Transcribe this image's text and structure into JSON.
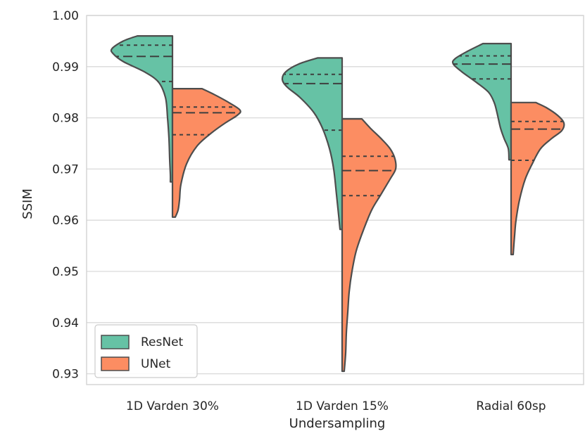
{
  "chart_data": {
    "type": "violin",
    "split": true,
    "xlabel": "Undersampling",
    "ylabel": "SSIM",
    "ylim": [
      0.9285,
      1.0
    ],
    "yticks": [
      1.0,
      0.99,
      0.98,
      0.97,
      0.96,
      0.95,
      0.94,
      0.93
    ],
    "ytick_labels": [
      "1.00",
      "0.99",
      "0.98",
      "0.97",
      "0.96",
      "0.95",
      "0.94",
      "0.93"
    ],
    "grid": true,
    "legend_position": "bottom-left",
    "categories": [
      "1D Varden 30%",
      "1D Varden 15%",
      "Radial 60sp"
    ],
    "series": [
      {
        "name": "ResNet",
        "color": "#66c2a5",
        "side": "left",
        "violins": [
          {
            "profile": [
              [
                0.996,
                50
              ],
              [
                0.995,
                70
              ],
              [
                0.9935,
                86
              ],
              [
                0.9925,
                84
              ],
              [
                0.991,
                70
              ],
              [
                0.989,
                40
              ],
              [
                0.987,
                20
              ],
              [
                0.984,
                10
              ],
              [
                0.98,
                7
              ],
              [
                0.976,
                5
              ],
              [
                0.972,
                4
              ],
              [
                0.969,
                3
              ],
              [
                0.9675,
                3
              ]
            ],
            "quartiles": [
              0.9871,
              0.992,
              0.9942
            ]
          },
          {
            "profile": [
              [
                0.9917,
                35
              ],
              [
                0.9905,
                62
              ],
              [
                0.989,
                80
              ],
              [
                0.9875,
                85
              ],
              [
                0.986,
                78
              ],
              [
                0.984,
                60
              ],
              [
                0.981,
                40
              ],
              [
                0.978,
                28
              ],
              [
                0.974,
                18
              ],
              [
                0.97,
                12
              ],
              [
                0.965,
                8
              ],
              [
                0.961,
                5
              ],
              [
                0.9582,
                3
              ]
            ],
            "quartiles": [
              0.9776,
              0.9867,
              0.9885
            ]
          },
          {
            "profile": [
              [
                0.9945,
                40
              ],
              [
                0.993,
                62
              ],
              [
                0.9915,
                80
              ],
              [
                0.9905,
                82
              ],
              [
                0.989,
                70
              ],
              [
                0.987,
                50
              ],
              [
                0.985,
                32
              ],
              [
                0.983,
                24
              ],
              [
                0.981,
                20
              ],
              [
                0.978,
                15
              ],
              [
                0.976,
                10
              ],
              [
                0.974,
                4
              ],
              [
                0.9718,
                3
              ]
            ],
            "quartiles": [
              0.9876,
              0.9905,
              0.9921
            ]
          }
        ]
      },
      {
        "name": "UNet",
        "color": "#fc8d62",
        "side": "right",
        "violins": [
          {
            "profile": [
              [
                0.9857,
                42
              ],
              [
                0.9845,
                60
              ],
              [
                0.983,
                80
              ],
              [
                0.9815,
                96
              ],
              [
                0.9805,
                92
              ],
              [
                0.979,
                75
              ],
              [
                0.977,
                55
              ],
              [
                0.9745,
                35
              ],
              [
                0.971,
                20
              ],
              [
                0.967,
                12
              ],
              [
                0.964,
                10
              ],
              [
                0.962,
                8
              ],
              [
                0.9606,
                4
              ]
            ],
            "quartiles": [
              0.9767,
              0.981,
              0.9821
            ]
          },
          {
            "profile": [
              [
                0.9798,
                28
              ],
              [
                0.978,
                40
              ],
              [
                0.976,
                55
              ],
              [
                0.974,
                68
              ],
              [
                0.972,
                75
              ],
              [
                0.97,
                76
              ],
              [
                0.968,
                68
              ],
              [
                0.965,
                55
              ],
              [
                0.962,
                42
              ],
              [
                0.958,
                30
              ],
              [
                0.954,
                20
              ],
              [
                0.95,
                14
              ],
              [
                0.946,
                10
              ],
              [
                0.942,
                8
              ],
              [
                0.938,
                6
              ],
              [
                0.934,
                5
              ],
              [
                0.9305,
                3
              ]
            ],
            "quartiles": [
              0.9648,
              0.9697,
              0.9725
            ]
          },
          {
            "profile": [
              [
                0.983,
                35
              ],
              [
                0.982,
                50
              ],
              [
                0.9805,
                66
              ],
              [
                0.979,
                75
              ],
              [
                0.9775,
                72
              ],
              [
                0.976,
                58
              ],
              [
                0.974,
                42
              ],
              [
                0.971,
                30
              ],
              [
                0.968,
                20
              ],
              [
                0.964,
                12
              ],
              [
                0.96,
                7
              ],
              [
                0.957,
                5
              ],
              [
                0.9533,
                3
              ]
            ],
            "quartiles": [
              0.9717,
              0.9778,
              0.9793
            ]
          }
        ]
      }
    ]
  }
}
